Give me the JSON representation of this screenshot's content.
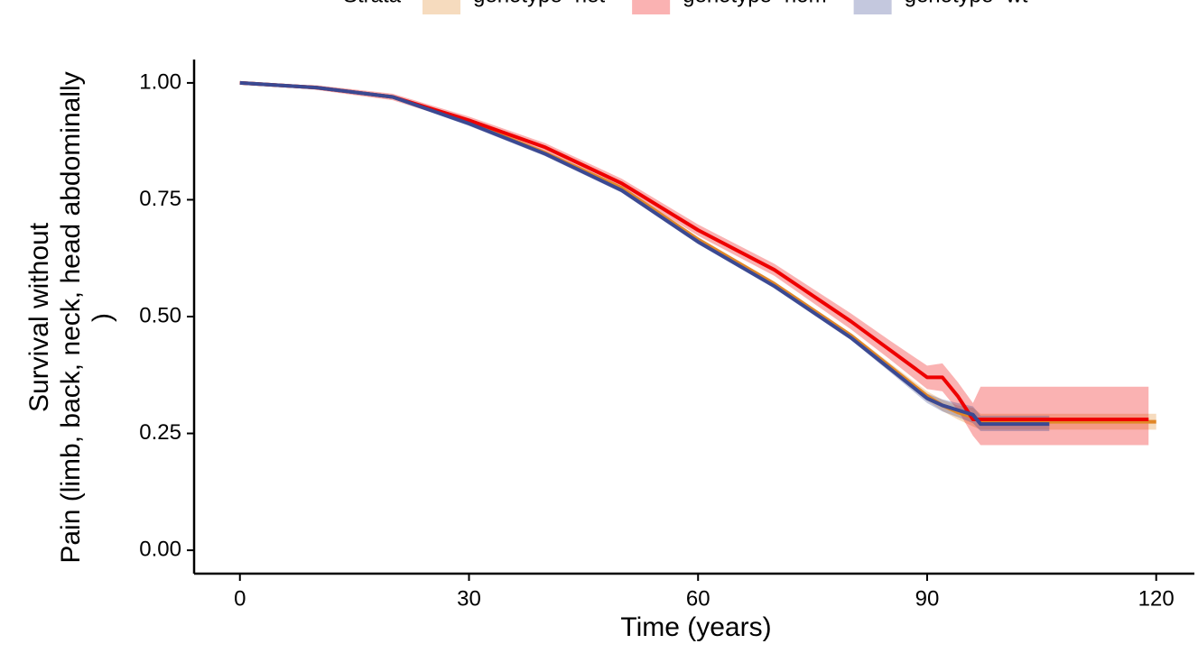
{
  "chart_data": {
    "type": "survival",
    "ylabel": [
      "Survival without",
      "Pain (limb, back, neck, head abdominally",
      ")"
    ],
    "xlabel": "Time (years)",
    "legend_title": "Strata",
    "legend_position": "top",
    "x": [
      0,
      10,
      20,
      30,
      40,
      50,
      60,
      70,
      80,
      85,
      90,
      92,
      94,
      96,
      97,
      106,
      119,
      120
    ],
    "series": [
      {
        "name": "genotype=het",
        "color": "#e18727",
        "values": [
          1,
          0.99,
          0.97,
          0.915,
          0.85,
          0.775,
          0.665,
          0.57,
          0.46,
          0.395,
          0.33,
          0.31,
          0.295,
          0.285,
          0.275,
          0.275,
          0.275,
          0.275
        ],
        "lower": [
          1,
          0.987,
          0.966,
          0.91,
          0.845,
          0.77,
          0.66,
          0.565,
          0.455,
          0.388,
          0.32,
          0.298,
          0.28,
          0.265,
          0.258,
          0.258,
          0.258,
          0.258
        ],
        "upper": [
          1,
          0.993,
          0.974,
          0.92,
          0.855,
          0.78,
          0.67,
          0.575,
          0.465,
          0.402,
          0.34,
          0.322,
          0.31,
          0.305,
          0.292,
          0.292,
          0.292,
          0.292
        ]
      },
      {
        "name": "genotype=hom",
        "color": "#ee0000",
        "values": [
          1,
          0.99,
          0.97,
          0.92,
          0.862,
          0.785,
          0.685,
          0.6,
          0.49,
          0.43,
          0.37,
          0.37,
          0.33,
          0.28,
          0.28,
          0.28,
          0.28,
          null
        ],
        "lower": [
          1,
          0.985,
          0.963,
          0.912,
          0.853,
          0.775,
          0.673,
          0.587,
          0.473,
          0.41,
          0.345,
          0.34,
          0.3,
          0.245,
          0.225,
          0.225,
          0.225,
          null
        ],
        "upper": [
          1,
          0.995,
          0.977,
          0.928,
          0.871,
          0.795,
          0.697,
          0.613,
          0.507,
          0.45,
          0.395,
          0.4,
          0.36,
          0.315,
          0.35,
          0.35,
          0.35,
          null
        ]
      },
      {
        "name": "genotype=wt",
        "color": "#3b4992",
        "values": [
          1,
          0.99,
          0.97,
          0.913,
          0.848,
          0.77,
          0.66,
          0.565,
          0.455,
          0.39,
          0.325,
          0.31,
          0.3,
          0.29,
          0.27,
          0.27,
          null,
          null
        ],
        "lower": [
          1,
          0.987,
          0.966,
          0.908,
          0.843,
          0.765,
          0.655,
          0.56,
          0.45,
          0.383,
          0.315,
          0.297,
          0.285,
          0.272,
          0.255,
          0.255,
          null,
          null
        ],
        "upper": [
          1,
          0.993,
          0.974,
          0.918,
          0.853,
          0.775,
          0.665,
          0.57,
          0.46,
          0.397,
          0.335,
          0.323,
          0.315,
          0.308,
          0.288,
          0.288,
          null,
          null
        ]
      }
    ],
    "xlim": [
      -6,
      125
    ],
    "xticks": [
      0,
      30,
      60,
      90,
      120
    ],
    "ylim": [
      -0.05,
      1.05
    ],
    "yticks": [
      {
        "value": 0,
        "label": "0.00"
      },
      {
        "value": 0.25,
        "label": "0.25"
      },
      {
        "value": 0.5,
        "label": "0.50"
      },
      {
        "value": 0.75,
        "label": "0.75"
      },
      {
        "value": 1,
        "label": "1.00"
      }
    ],
    "grid": false
  }
}
